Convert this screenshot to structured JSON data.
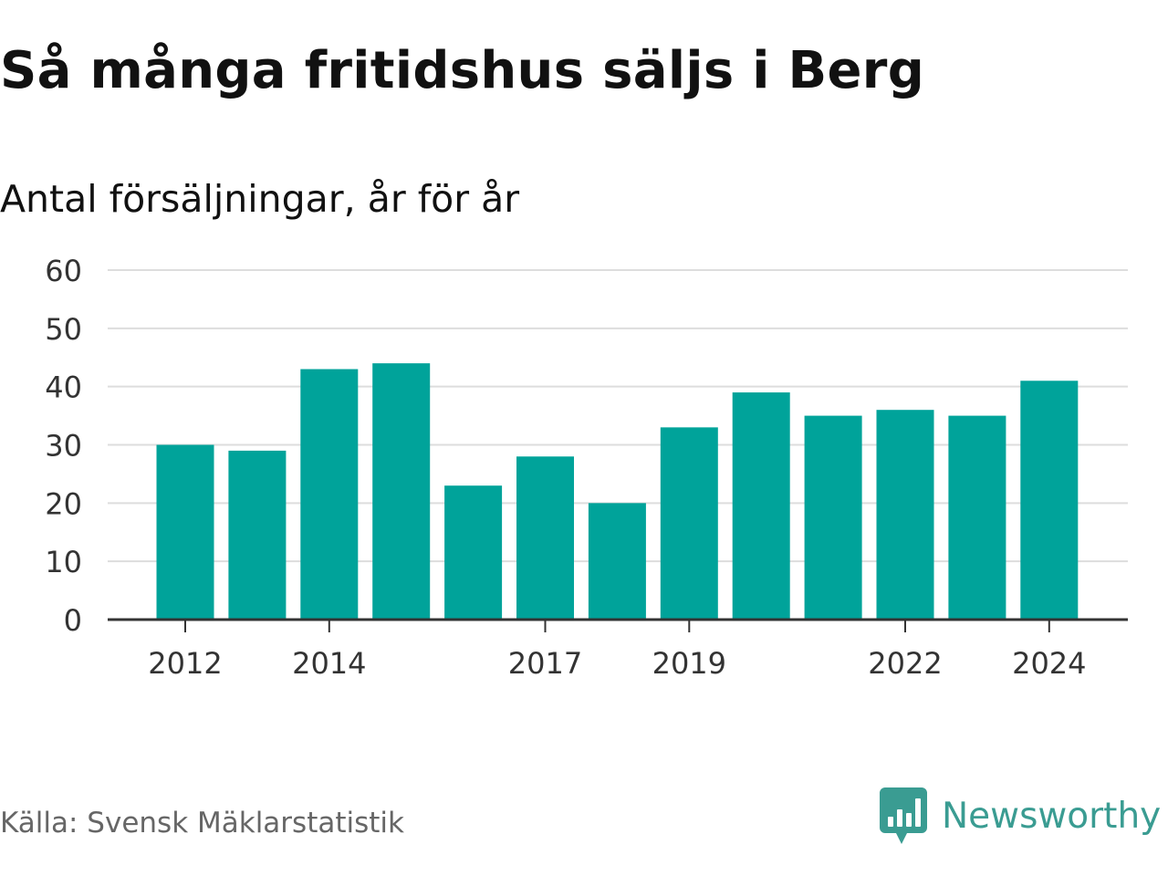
{
  "title": "Så många fritidshus säljs i Berg",
  "subtitle": "Antal försäljningar, år för år",
  "source": "Källa: Svensk Mäklarstatistik",
  "brand": {
    "name": "Newsworthy",
    "icon": "newsworthy-logo-icon",
    "color": "#3a9c92"
  },
  "chart_data": {
    "type": "bar",
    "categories": [
      "2012",
      "2013",
      "2014",
      "2015",
      "2016",
      "2017",
      "2018",
      "2019",
      "2020",
      "2021",
      "2022",
      "2023",
      "2024"
    ],
    "x_tick_labels": [
      "2012",
      "2014",
      "2017",
      "2019",
      "2022",
      "2024"
    ],
    "values": [
      30,
      29,
      43,
      44,
      23,
      28,
      20,
      33,
      39,
      35,
      36,
      35,
      41
    ],
    "ylim": [
      0,
      60
    ],
    "y_ticks": [
      "0",
      "10",
      "20",
      "30",
      "40",
      "50",
      "60"
    ],
    "grid": true,
    "bar_color": "#00a39a",
    "gridline_color": "#dddddd",
    "axis_color": "#333333"
  }
}
